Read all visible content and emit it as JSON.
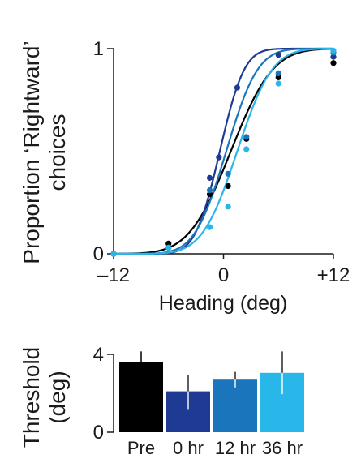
{
  "chart_data": [
    {
      "type": "line",
      "xlabel": "Heading (deg)",
      "ylabel_lines": [
        "Proportion ‘Rightward’",
        "choices"
      ],
      "xlim": [
        -12,
        12
      ],
      "ylim": [
        0,
        1
      ],
      "x_ticks": [
        {
          "value": -12,
          "label": "–12"
        },
        {
          "value": 0,
          "label": "0"
        },
        {
          "value": 12,
          "label": "+12"
        }
      ],
      "y_ticks": [
        {
          "value": 0,
          "label": "0"
        },
        {
          "value": 1,
          "label": "1"
        }
      ],
      "colors": [
        "#000000",
        "#1f3a93",
        "#1a75bc",
        "#29b6e8"
      ],
      "series": [
        {
          "color": "#000000",
          "fit": {
            "mu": 0.8,
            "sigma": 3.6
          },
          "points": [
            [
              -12,
              0.0
            ],
            [
              -6,
              0.05
            ],
            [
              -1.5,
              0.29
            ],
            [
              0.5,
              0.33
            ],
            [
              2.5,
              0.56
            ],
            [
              6,
              0.86
            ],
            [
              12,
              0.93
            ]
          ]
        },
        {
          "color": "#1f3a93",
          "fit": {
            "mu": -0.4,
            "sigma": 2.1
          },
          "points": [
            [
              -12,
              0.0
            ],
            [
              -6,
              0.03
            ],
            [
              -1.5,
              0.37
            ],
            [
              -0.5,
              0.47
            ],
            [
              1.5,
              0.81
            ],
            [
              6,
              0.97
            ],
            [
              12,
              0.96
            ]
          ]
        },
        {
          "color": "#1a75bc",
          "fit": {
            "mu": 0.3,
            "sigma": 2.7
          },
          "points": [
            [
              -12,
              0.0
            ],
            [
              -6,
              0.03
            ],
            [
              -1.5,
              0.31
            ],
            [
              0.5,
              0.39
            ],
            [
              2.5,
              0.57
            ],
            [
              6,
              0.88
            ],
            [
              12,
              0.98
            ]
          ]
        },
        {
          "color": "#29b6e8",
          "fit": {
            "mu": 1.5,
            "sigma": 3.0
          },
          "points": [
            [
              -12,
              0.0
            ],
            [
              -6,
              0.03
            ],
            [
              -1.5,
              0.13
            ],
            [
              0.5,
              0.23
            ],
            [
              2.5,
              0.51
            ],
            [
              6,
              0.83
            ],
            [
              12,
              0.99
            ]
          ]
        }
      ]
    },
    {
      "type": "bar",
      "ylabel_lines": [
        "Threshold",
        "(deg)"
      ],
      "ylim": [
        0,
        4
      ],
      "y_ticks": [
        {
          "value": 0,
          "label": "0"
        },
        {
          "value": 4,
          "label": "4"
        }
      ],
      "categories": [
        "Pre",
        "0 hr",
        "12 hr",
        "36 hr"
      ],
      "values": [
        3.6,
        2.1,
        2.7,
        3.05
      ],
      "errors": [
        [
          3.0,
          4.15
        ],
        [
          1.15,
          2.95
        ],
        [
          2.3,
          3.1
        ],
        [
          1.95,
          4.15
        ]
      ],
      "colors": [
        "#000000",
        "#1f3a93",
        "#1a75bc",
        "#29b6e8"
      ]
    }
  ]
}
